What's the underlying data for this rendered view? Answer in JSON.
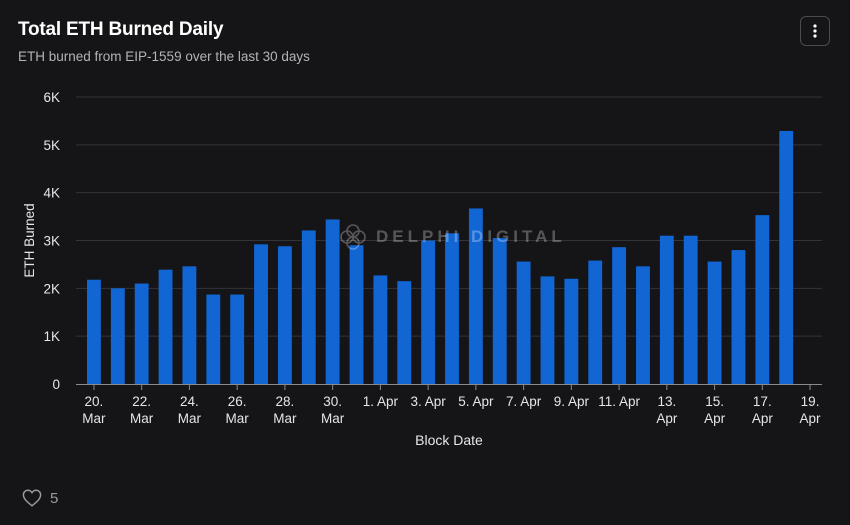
{
  "header": {
    "title": "Total ETH Burned Daily",
    "subtitle": "ETH burned from EIP-1559 over the last 30 days",
    "menu_icon": "vertical-dots-icon"
  },
  "watermark": {
    "text": "DELPHI DIGITAL",
    "icon": "delphi-logo-icon"
  },
  "footer": {
    "like_icon": "heart-icon",
    "like_count": "5"
  },
  "colors": {
    "bar": "#1266d4",
    "background": "#151517",
    "grid": "#33343a",
    "text": "#e6e6e8"
  },
  "chart_data": {
    "type": "bar",
    "title": "Total ETH Burned Daily",
    "subtitle": "ETH burned from EIP-1559 over the last 30 days",
    "xlabel": "Block Date",
    "ylabel": "ETH Burned",
    "ylim": [
      0,
      6000
    ],
    "yticks": [
      0,
      1000,
      2000,
      3000,
      4000,
      5000,
      6000
    ],
    "ytick_labels": [
      "0",
      "1K",
      "2K",
      "3K",
      "4K",
      "5K",
      "6K"
    ],
    "xtick_labels": [
      [
        "20.",
        "Mar"
      ],
      [
        "22.",
        "Mar"
      ],
      [
        "24.",
        "Mar"
      ],
      [
        "26.",
        "Mar"
      ],
      [
        "28.",
        "Mar"
      ],
      [
        "30.",
        "Mar"
      ],
      [
        "1. Apr"
      ],
      [
        "3. Apr"
      ],
      [
        "5. Apr"
      ],
      [
        "7. Apr"
      ],
      [
        "9. Apr"
      ],
      [
        "11. Apr"
      ],
      [
        "13.",
        "Apr"
      ],
      [
        "15.",
        "Apr"
      ],
      [
        "17.",
        "Apr"
      ],
      [
        "19.",
        "Apr"
      ]
    ],
    "grid": true,
    "legend": "none",
    "categories": [
      "20. Mar",
      "21. Mar",
      "22. Mar",
      "23. Mar",
      "24. Mar",
      "25. Mar",
      "26. Mar",
      "27. Mar",
      "28. Mar",
      "29. Mar",
      "30. Mar",
      "31. Mar",
      "1. Apr",
      "2. Apr",
      "3. Apr",
      "4. Apr",
      "5. Apr",
      "6. Apr",
      "7. Apr",
      "8. Apr",
      "9. Apr",
      "10. Apr",
      "11. Apr",
      "12. Apr",
      "13. Apr",
      "14. Apr",
      "15. Apr",
      "16. Apr",
      "17. Apr",
      "18. Apr"
    ],
    "values": [
      2180,
      2000,
      2100,
      2390,
      2460,
      1870,
      1870,
      2920,
      2880,
      3210,
      3440,
      2900,
      2270,
      2150,
      3000,
      3150,
      3670,
      3050,
      2560,
      2250,
      2200,
      2580,
      2860,
      2460,
      3100,
      3100,
      2560,
      2800,
      3530,
      5290
    ]
  }
}
